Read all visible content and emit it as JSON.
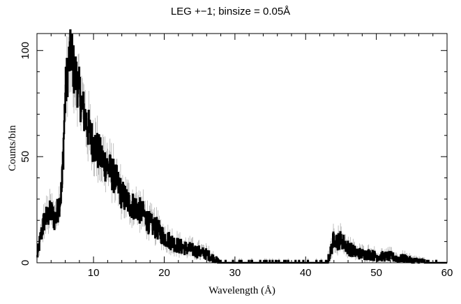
{
  "chart_data": {
    "type": "line",
    "title": "LEG +−1; binsize = 0.05Å",
    "xlabel": "Wavelength (Å)",
    "ylabel": "Counts/bin",
    "xlim": [
      2,
      60
    ],
    "ylim": [
      0,
      108
    ],
    "grid": false,
    "legend": "none",
    "x_ticks": [
      10,
      20,
      30,
      40,
      50,
      60
    ],
    "y_ticks": [
      0,
      50,
      100
    ],
    "colors": {
      "data": "#000000",
      "error_bars": "#b0b0b0",
      "frame": "#000000"
    },
    "series": [
      {
        "style": "histogram-step",
        "x": [
          2.0,
          2.5,
          3.0,
          3.5,
          4.0,
          4.5,
          5.0,
          5.5,
          5.8,
          6.0,
          6.3,
          6.6,
          6.9,
          7.2,
          7.5,
          8.0,
          8.5,
          9.0,
          9.5,
          10.0,
          11.0,
          12.0,
          13.0,
          14.0,
          15.0,
          16.0,
          17.0,
          18.0,
          19.0,
          20.0,
          21.0,
          22.0,
          23.0,
          24.0,
          25.0,
          26.0,
          27.0,
          27.5,
          28.0,
          30.0,
          35.0,
          40.0,
          43.0,
          43.5,
          44.0,
          44.5,
          45.0,
          45.5,
          46.0,
          47.0,
          48.0,
          49.0,
          50.0,
          51.0,
          52.0,
          53.0,
          54.0,
          55.0,
          56.0,
          58.0,
          60.0
        ],
        "y": [
          3,
          12,
          20,
          22,
          24,
          20,
          26,
          35,
          62,
          80,
          90,
          96,
          100,
          90,
          88,
          80,
          72,
          66,
          60,
          56,
          50,
          45,
          40,
          32,
          28,
          26,
          23,
          18,
          16,
          12,
          10,
          8,
          7,
          6,
          5,
          4,
          2,
          1,
          0,
          0,
          0,
          0,
          0,
          5,
          12,
          10,
          11,
          9,
          7,
          5,
          4,
          4,
          3,
          3,
          3,
          2,
          2,
          1,
          1,
          0,
          0
        ]
      }
    ]
  }
}
